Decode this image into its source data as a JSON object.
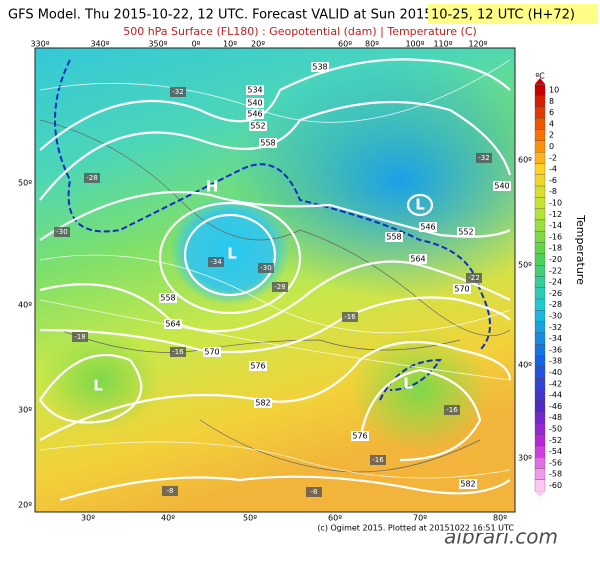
{
  "header": {
    "title": "GFS Model. Thu 2015-10-22, 12 UTC. Forecast VALID at Sun 2015-",
    "title_highlight": "10-25, 12 UTC (H+72)",
    "subtitle": "500 hPa Surface (FL180) : Geopotential (dam) | Temperature (C)"
  },
  "map": {
    "top_lon_labels": [
      "330º",
      "340º",
      "350º",
      "0º",
      "10º",
      "20º",
      "60º",
      "80º",
      "100º",
      "110º",
      "120º"
    ],
    "bottom_lon_labels": [
      "30º",
      "40º",
      "50º",
      "60º",
      "70º",
      "80º"
    ],
    "left_lat_labels": [
      "50º",
      "40º",
      "30º",
      "20º"
    ],
    "right_lat_labels": [
      "60º",
      "50º",
      "40º",
      "30º"
    ],
    "geopotential_labels": [
      "538",
      "534",
      "540",
      "546",
      "552",
      "558",
      "540",
      "546",
      "552",
      "558",
      "564",
      "570",
      "558",
      "564",
      "570",
      "576",
      "582",
      "576",
      "582"
    ],
    "temperature_labels": [
      "-32",
      "-28",
      "-30",
      "-34",
      "-30",
      "-28",
      "-16",
      "-18",
      "-16",
      "-16",
      "-16",
      "-8",
      "-8",
      "-32",
      "-22"
    ],
    "pressure_centers": [
      "H",
      "L",
      "L",
      "L",
      "L"
    ],
    "credit": "(c) Ogimet 2015. Plotted at 20151022 16:51 UTC"
  },
  "colorbar": {
    "unit": "ºC",
    "title": "Temperature",
    "labels": [
      10,
      8,
      6,
      4,
      2,
      0,
      -2,
      -4,
      -6,
      -8,
      -10,
      -12,
      -14,
      -16,
      -18,
      -20,
      -22,
      -24,
      -26,
      -28,
      -30,
      -32,
      -34,
      -36,
      -38,
      -40,
      -42,
      -44,
      -46,
      -48,
      -50,
      -52,
      -54,
      -56,
      -58,
      -60
    ]
  },
  "watermark": "albrari.com"
}
